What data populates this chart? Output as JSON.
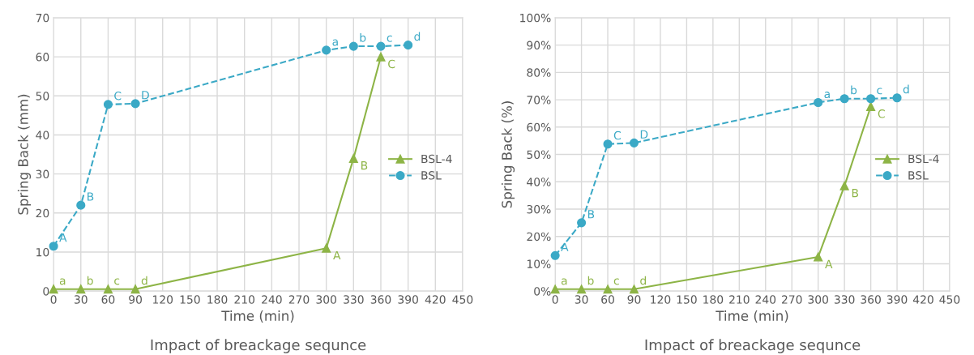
{
  "chart_data": [
    {
      "type": "line",
      "title": "Impact of breackage sequnce",
      "xlabel": "Time (min)",
      "ylabel": "Spring Back (mm)",
      "xlim": [
        0,
        450
      ],
      "xticks": [
        0,
        30,
        60,
        90,
        120,
        150,
        180,
        210,
        240,
        270,
        300,
        330,
        360,
        390,
        420,
        450
      ],
      "ylim": [
        0,
        70
      ],
      "yticks": [
        0,
        10,
        20,
        30,
        40,
        50,
        60,
        70
      ],
      "grid": true,
      "legend": "right",
      "series": [
        {
          "name": "BSL-4",
          "color": "#8db446",
          "marker": "triangle",
          "line_style": "solid",
          "x": [
            0,
            30,
            60,
            90,
            300,
            330,
            360
          ],
          "values": [
            0.5,
            0.5,
            0.5,
            0.5,
            11,
            34,
            60
          ]
        },
        {
          "name": "BSL",
          "color": "#3ba9c6",
          "marker": "circle",
          "line_style": "dashed",
          "x": [
            0,
            30,
            60,
            90,
            300,
            330,
            360,
            390
          ],
          "values": [
            11.5,
            22,
            47.8,
            48,
            61.7,
            62.7,
            62.7,
            63
          ]
        }
      ],
      "annotations": [
        {
          "text": "a",
          "x": 0,
          "y": 0.5
        },
        {
          "text": "b",
          "x": 30,
          "y": 0.5
        },
        {
          "text": "c",
          "x": 60,
          "y": 0.5
        },
        {
          "text": "d",
          "x": 90,
          "y": 0.5
        },
        {
          "text": "A",
          "x": 300,
          "y": 11
        },
        {
          "text": "B",
          "x": 330,
          "y": 34
        },
        {
          "text": "C",
          "x": 360,
          "y": 60
        },
        {
          "text": "A",
          "x": 0,
          "y": 11.5
        },
        {
          "text": "B",
          "x": 30,
          "y": 22
        },
        {
          "text": "C",
          "x": 60,
          "y": 47.8
        },
        {
          "text": "D",
          "x": 90,
          "y": 48
        },
        {
          "text": "a",
          "x": 300,
          "y": 61.7
        },
        {
          "text": "b",
          "x": 330,
          "y": 62.7
        },
        {
          "text": "c",
          "x": 360,
          "y": 62.7
        },
        {
          "text": "d",
          "x": 390,
          "y": 63
        }
      ]
    },
    {
      "type": "line",
      "title": "Impact of breackage sequnce",
      "xlabel": "Time (min)",
      "ylabel": "Spring Back (%)",
      "xlim": [
        0,
        450
      ],
      "xticks": [
        0,
        30,
        60,
        90,
        120,
        150,
        180,
        210,
        240,
        270,
        300,
        330,
        360,
        390,
        420,
        450
      ],
      "ylim": [
        0,
        100
      ],
      "yticks": [
        {
          "value": 0,
          "label": "0%"
        },
        {
          "value": 10,
          "label": "10%"
        },
        {
          "value": 20,
          "label": "20%"
        },
        {
          "value": 30,
          "label": "30%"
        },
        {
          "value": 40,
          "label": "40%"
        },
        {
          "value": 50,
          "label": "50%"
        },
        {
          "value": 60,
          "label": "60%"
        },
        {
          "value": 70,
          "label": "70%"
        },
        {
          "value": 80,
          "label": "80%"
        },
        {
          "value": 90,
          "label": "90%"
        },
        {
          "value": 100,
          "label": "100%"
        }
      ],
      "grid": true,
      "legend": "right",
      "series": [
        {
          "name": "BSL-4",
          "color": "#8db446",
          "marker": "triangle",
          "line_style": "solid",
          "x": [
            0,
            30,
            60,
            90,
            300,
            330,
            360
          ],
          "values": [
            0.7,
            0.7,
            0.7,
            0.7,
            12.5,
            38.5,
            67.5
          ]
        },
        {
          "name": "BSL",
          "color": "#3ba9c6",
          "marker": "circle",
          "line_style": "dashed",
          "x": [
            0,
            30,
            60,
            90,
            300,
            330,
            360,
            390
          ],
          "values": [
            13,
            25,
            53.8,
            54.2,
            69,
            70.4,
            70.4,
            70.7
          ]
        }
      ],
      "annotations": [
        {
          "text": "a",
          "x": 0,
          "y": 0.7
        },
        {
          "text": "b",
          "x": 30,
          "y": 0.7
        },
        {
          "text": "c",
          "x": 60,
          "y": 0.7
        },
        {
          "text": "d",
          "x": 90,
          "y": 0.7
        },
        {
          "text": "A",
          "x": 300,
          "y": 12.5
        },
        {
          "text": "B",
          "x": 330,
          "y": 38.5
        },
        {
          "text": "C",
          "x": 360,
          "y": 67.5
        },
        {
          "text": "A",
          "x": 0,
          "y": 13
        },
        {
          "text": "B",
          "x": 30,
          "y": 25
        },
        {
          "text": "C",
          "x": 60,
          "y": 53.8
        },
        {
          "text": "D",
          "x": 90,
          "y": 54.2
        },
        {
          "text": "a",
          "x": 300,
          "y": 69
        },
        {
          "text": "b",
          "x": 330,
          "y": 70.4
        },
        {
          "text": "c",
          "x": 360,
          "y": 70.4
        },
        {
          "text": "d",
          "x": 390,
          "y": 70.7
        }
      ]
    }
  ]
}
